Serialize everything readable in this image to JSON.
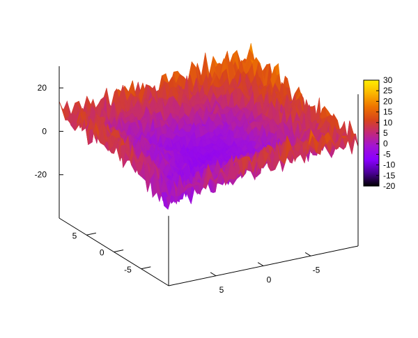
{
  "chart_data": {
    "type": "surface",
    "title": "",
    "xlabel": "",
    "ylabel": "",
    "zlabel": "",
    "x_range": [
      -10,
      10
    ],
    "y_range": [
      -10,
      10
    ],
    "z_range": [
      -40,
      30
    ],
    "x_ticks": [
      "5",
      "0",
      "-5"
    ],
    "y_ticks": [
      "5",
      "0",
      "-5"
    ],
    "z_ticks": [
      "20",
      "0",
      "-20"
    ],
    "colorbar": {
      "range": [
        -20,
        30
      ],
      "ticks": [
        "30",
        "25",
        "20",
        "15",
        "10",
        "5",
        "0",
        "-5",
        "-10",
        "-15",
        "-20"
      ],
      "palette": [
        "#000000",
        "#4b0096",
        "#8a00ff",
        "#a213d4",
        "#c2287a",
        "#d8451a",
        "#ee7400",
        "#fbb500",
        "#ffee00"
      ]
    },
    "surface_description_values": {
      "edge_level": 10,
      "center_level": -5,
      "near_front_min": -25,
      "far_back_max": 25
    },
    "grid": false,
    "legend": "none"
  }
}
